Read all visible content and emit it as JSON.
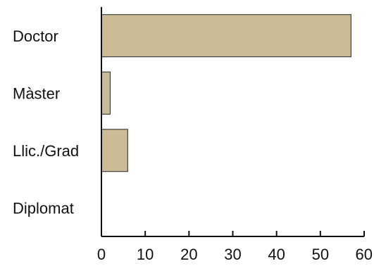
{
  "chart_data": {
    "type": "bar",
    "orientation": "horizontal",
    "categories": [
      "Doctor",
      "Màster",
      "Llic./Grad",
      "Diplomat"
    ],
    "values": [
      57,
      2,
      6,
      0
    ],
    "xlim": [
      0,
      60
    ],
    "xticks": [
      "0",
      "10",
      "20",
      "30",
      "40",
      "50",
      "60"
    ],
    "title": "",
    "xlabel": "",
    "ylabel": "",
    "grid": false,
    "legend": "none",
    "colors": {
      "bar_fill": "#cbbb96",
      "bar_stroke": "#222222",
      "axis": "#111111",
      "text": "#111111"
    }
  }
}
